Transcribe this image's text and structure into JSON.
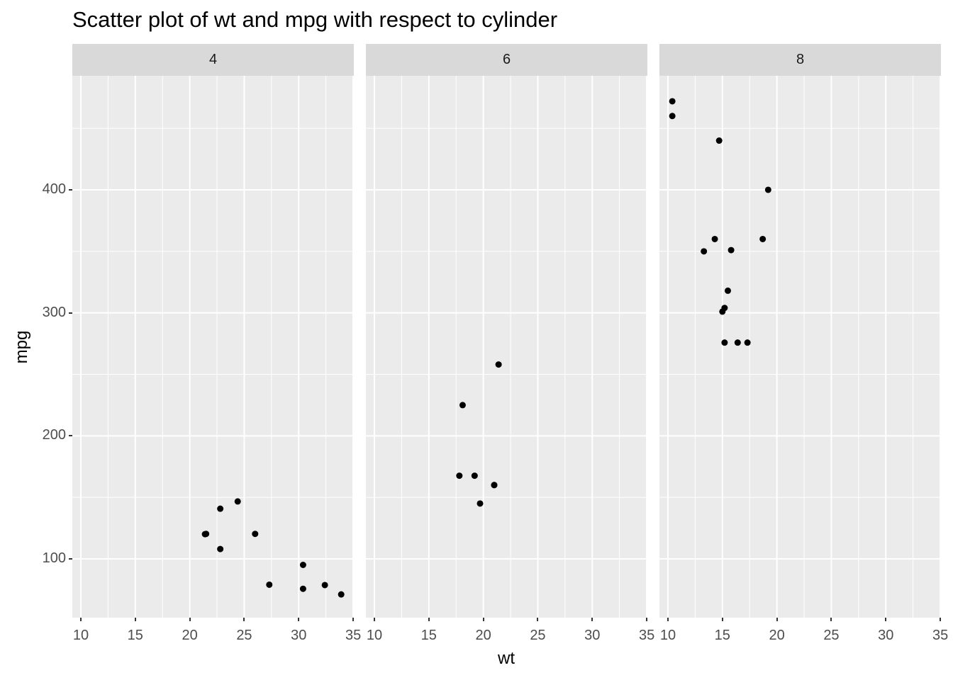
{
  "chart_data": {
    "type": "scatter",
    "title": "Scatter plot of wt and mpg with respect to cylinder",
    "xlabel": "wt",
    "ylabel": "mpg",
    "facet_by": "cylinder",
    "xlim": [
      9.22,
      35.06
    ],
    "ylim": [
      52.2,
      492.7
    ],
    "x_ticks": [
      10,
      15,
      20,
      25,
      30,
      35
    ],
    "y_ticks": [
      100,
      200,
      300,
      400
    ],
    "grid": true,
    "legend": null,
    "panels": [
      {
        "label": "4",
        "points": [
          {
            "x": 21.4,
            "y": 120.1
          },
          {
            "x": 21.5,
            "y": 120.3
          },
          {
            "x": 22.8,
            "y": 108.0
          },
          {
            "x": 22.8,
            "y": 140.8
          },
          {
            "x": 24.4,
            "y": 146.7
          },
          {
            "x": 26.0,
            "y": 120.3
          },
          {
            "x": 27.3,
            "y": 79.0
          },
          {
            "x": 30.4,
            "y": 75.7
          },
          {
            "x": 30.4,
            "y": 95.1
          },
          {
            "x": 32.4,
            "y": 78.7
          },
          {
            "x": 33.9,
            "y": 71.1
          }
        ]
      },
      {
        "label": "6",
        "points": [
          {
            "x": 21.0,
            "y": 160.0
          },
          {
            "x": 21.0,
            "y": 160.0
          },
          {
            "x": 21.4,
            "y": 258.0
          },
          {
            "x": 18.1,
            "y": 225.0
          },
          {
            "x": 19.2,
            "y": 167.6
          },
          {
            "x": 17.8,
            "y": 167.6
          },
          {
            "x": 19.7,
            "y": 145.0
          }
        ]
      },
      {
        "label": "8",
        "points": [
          {
            "x": 10.4,
            "y": 472.0
          },
          {
            "x": 10.4,
            "y": 460.0
          },
          {
            "x": 14.7,
            "y": 440.0
          },
          {
            "x": 19.2,
            "y": 400.0
          },
          {
            "x": 14.3,
            "y": 360.0
          },
          {
            "x": 18.7,
            "y": 360.0
          },
          {
            "x": 13.3,
            "y": 350.0
          },
          {
            "x": 15.8,
            "y": 351.0
          },
          {
            "x": 15.5,
            "y": 318.0
          },
          {
            "x": 15.2,
            "y": 304.0
          },
          {
            "x": 15.0,
            "y": 301.0
          },
          {
            "x": 15.2,
            "y": 275.8
          },
          {
            "x": 16.4,
            "y": 275.8
          },
          {
            "x": 17.3,
            "y": 275.8
          }
        ]
      }
    ]
  },
  "colors": {
    "panel_background": "#EBEBEB",
    "strip_background": "#D9D9D9",
    "grid_major": "#FFFFFF",
    "point": "#000000",
    "tick_text": "#4D4D4D"
  }
}
